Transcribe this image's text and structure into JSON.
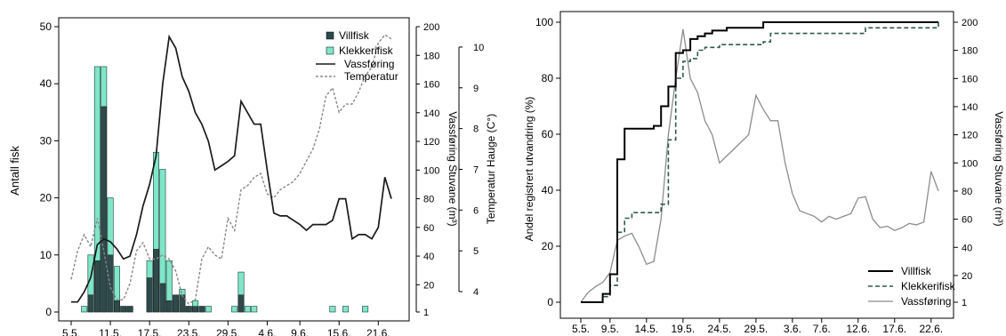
{
  "colors": {
    "villfisk": "#2e4a4a",
    "klekkerifisk": "#7fe6c8",
    "line": "#1a1a1a",
    "dashed": "#888888",
    "grey_line": "#8c8c8c"
  },
  "chart_data": [
    {
      "type": "bar",
      "panel": "left",
      "x_tick_labels": [
        "5.5.",
        "11.5.",
        "17.5.",
        "23.5.",
        "29.5.",
        "4.6.",
        "9.6.",
        "15.6.",
        "21.6."
      ],
      "xlim_day": [
        5,
        54
      ],
      "ylabel": "Antall fisk",
      "ylim": [
        0,
        50
      ],
      "y_ticks": [
        0,
        10,
        20,
        30,
        40,
        50
      ],
      "y2label": "Vassføring Stuvane (m³)",
      "y2lim": [
        1,
        200
      ],
      "y2_ticks": [
        1,
        20,
        40,
        60,
        80,
        100,
        120,
        140,
        160,
        180,
        200
      ],
      "y3label": "Temperatur Hauge (C°)",
      "y3lim": [
        3.5,
        10.5
      ],
      "y3_ticks": [
        4,
        5,
        6,
        7,
        8,
        9,
        10
      ],
      "legend": [
        "Villfisk",
        "Klekkerifisk",
        "Vassføring",
        "Temperatur"
      ],
      "legend_position": "top-right",
      "bars_day": [
        7,
        8,
        9,
        10,
        11,
        12,
        13,
        14,
        17,
        18,
        19,
        20,
        21,
        22,
        23,
        24,
        25,
        26,
        30,
        31,
        32,
        33,
        45,
        47,
        50
      ],
      "villfisk": [
        0,
        3,
        9,
        36,
        10,
        2,
        1,
        1,
        6,
        11,
        5,
        2,
        3,
        3,
        1,
        1,
        1,
        0,
        0,
        3,
        0,
        0,
        0,
        0,
        0
      ],
      "klekkerifisk": [
        1,
        10,
        43,
        43,
        20,
        8,
        1,
        1,
        9,
        28,
        25,
        9,
        2,
        4,
        1,
        2,
        1,
        1,
        1,
        7,
        1,
        1,
        1,
        1,
        1
      ],
      "series": [
        {
          "name": "Vassføring",
          "x_day": [
            5,
            6,
            7,
            8,
            9,
            10,
            11,
            12,
            13,
            14,
            15,
            16,
            17,
            18,
            19,
            20,
            21,
            22,
            23,
            24,
            25,
            26,
            27,
            28,
            29,
            30,
            31,
            32,
            33,
            34,
            35,
            36,
            37,
            38,
            39,
            40,
            41,
            42,
            43,
            44,
            45,
            46,
            47,
            48,
            49,
            50,
            51,
            52,
            53,
            54
          ],
          "values": [
            8,
            8,
            15,
            25,
            48,
            52,
            50,
            45,
            38,
            40,
            55,
            75,
            90,
            110,
            160,
            193,
            185,
            165,
            155,
            140,
            132,
            120,
            100,
            103,
            106,
            110,
            148,
            140,
            132,
            132,
            100,
            70,
            68,
            68,
            65,
            62,
            58,
            62,
            62,
            62,
            65,
            80,
            80,
            52,
            55,
            55,
            52,
            60,
            95,
            80
          ]
        },
        {
          "name": "Temperatur",
          "x_day": [
            5,
            6,
            7,
            8,
            9,
            10,
            11,
            12,
            13,
            14,
            15,
            16,
            17,
            18,
            19,
            20,
            21,
            22,
            23,
            24,
            25,
            26,
            27,
            28,
            29,
            30,
            31,
            32,
            33,
            34,
            35,
            36,
            37,
            38,
            39,
            40,
            41,
            42,
            43,
            44,
            45,
            46,
            47,
            48,
            49,
            50,
            51,
            52,
            53,
            54
          ],
          "values": [
            4.3,
            5.0,
            5.4,
            5.1,
            5.8,
            5.0,
            4.1,
            3.8,
            3.8,
            4.2,
            5.0,
            5.2,
            4.8,
            4.8,
            4.9,
            4.8,
            4.5,
            3.9,
            3.7,
            3.8,
            4.8,
            5.1,
            4.9,
            4.8,
            5.8,
            5.5,
            6.5,
            6.6,
            6.8,
            6.9,
            6.4,
            6.3,
            6.5,
            6.6,
            6.7,
            6.9,
            7.2,
            7.5,
            8.0,
            8.8,
            9.0,
            8.4,
            8.6,
            8.6,
            8.9,
            9.3,
            9.5,
            10.1,
            10.3,
            10.2
          ]
        }
      ]
    },
    {
      "type": "line",
      "panel": "right",
      "x_tick_labels": [
        "5.5.",
        "9.5.",
        "14.5.",
        "19.5.",
        "24.5.",
        "29.5.",
        "3.6.",
        "7.6.",
        "12.6.",
        "17.6.",
        "22.6."
      ],
      "xlim_day": [
        5,
        54
      ],
      "ylabel": "Andel registrert utvandring (%)",
      "ylim": [
        0,
        100
      ],
      "y_ticks": [
        0,
        20,
        40,
        60,
        80,
        100
      ],
      "y2label": "Vassføring Stuvane (m³)",
      "y2lim": [
        1,
        200
      ],
      "y2_ticks": [
        1,
        20,
        40,
        60,
        80,
        100,
        120,
        140,
        160,
        180,
        200
      ],
      "legend": [
        "Villfisk",
        "Klekkerifisk",
        "Vassføring"
      ],
      "legend_position": "bottom-right",
      "series": [
        {
          "name": "Villfisk",
          "x_day": [
            5,
            8,
            9,
            10,
            11,
            12,
            15,
            16,
            17,
            18,
            19,
            20,
            21,
            22,
            23,
            24,
            25,
            30,
            54
          ],
          "values": [
            0,
            3,
            10,
            51,
            62,
            62,
            63,
            70,
            77,
            89,
            90,
            94,
            95,
            96,
            97,
            97,
            98,
            100,
            100
          ]
        },
        {
          "name": "Klekkerifisk",
          "x_day": [
            5,
            8,
            9,
            10,
            11,
            12,
            16,
            17,
            18,
            19,
            20,
            21,
            22,
            24,
            30,
            31,
            44,
            54
          ],
          "values": [
            0,
            2,
            6,
            25,
            30,
            32,
            35,
            58,
            80,
            86,
            87,
            90,
            91,
            92,
            93,
            96,
            98,
            100
          ]
        },
        {
          "name": "Vassføring",
          "x_day": [
            5,
            6,
            7,
            8,
            9,
            10,
            11,
            12,
            13,
            14,
            15,
            16,
            17,
            18,
            19,
            20,
            21,
            22,
            23,
            24,
            25,
            26,
            27,
            28,
            29,
            30,
            31,
            32,
            33,
            34,
            35,
            36,
            37,
            38,
            39,
            40,
            41,
            42,
            43,
            44,
            45,
            46,
            47,
            48,
            49,
            50,
            51,
            52,
            53,
            54
          ],
          "values": [
            1,
            8,
            12,
            15,
            22,
            45,
            48,
            50,
            40,
            28,
            30,
            60,
            120,
            160,
            195,
            160,
            150,
            130,
            120,
            100,
            105,
            110,
            115,
            120,
            148,
            138,
            130,
            130,
            100,
            78,
            66,
            64,
            62,
            58,
            62,
            60,
            62,
            64,
            75,
            76,
            60,
            54,
            55,
            52,
            54,
            57,
            56,
            58,
            94,
            80
          ]
        }
      ]
    }
  ]
}
